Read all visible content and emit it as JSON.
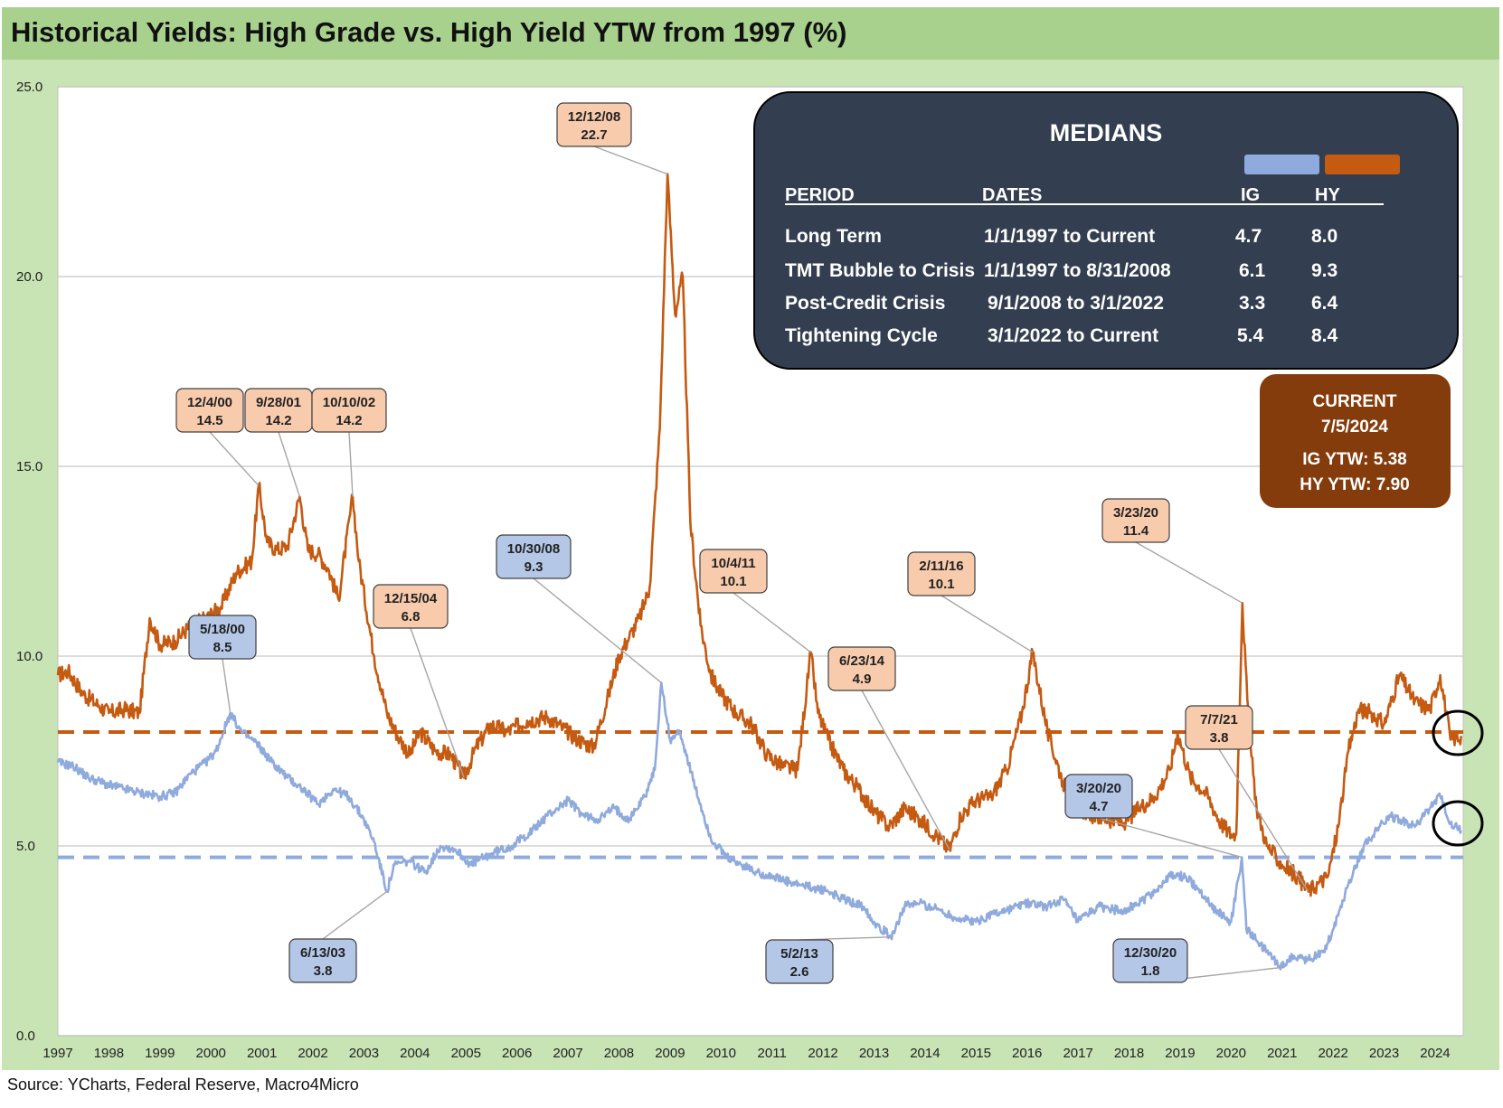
{
  "title": "Historical Yields: High Grade vs. High Yield YTW from 1997 (%)",
  "source": "Source: YCharts, Federal Reserve, Macro4Micro",
  "colors": {
    "ig": "#8faadc",
    "hy": "#c55a11",
    "ig_label_bg": "#b4c7e7",
    "hy_label_bg": "#f8cbad",
    "medians_box": "#333f50",
    "current_box": "#843c0c",
    "title_bar": "#a9d18e",
    "chart_bg": "#c8e3b4"
  },
  "medians": {
    "title": "MEDIANS",
    "headers": {
      "period": "PERIOD",
      "dates": "DATES",
      "ig": "IG",
      "hy": "HY"
    },
    "rows": [
      {
        "period": "Long Term",
        "dates": "1/1/1997 to Current",
        "ig": "4.7",
        "hy": "8.0"
      },
      {
        "period": "TMT Bubble to Crisis",
        "dates": "1/1/1997 to 8/31/2008",
        "ig": "6.1",
        "hy": "9.3"
      },
      {
        "period": "Post-Credit Crisis",
        "dates": "9/1/2008 to 3/1/2022",
        "ig": "3.3",
        "hy": "6.4"
      },
      {
        "period": "Tightening Cycle",
        "dates": "3/1/2022 to Current",
        "ig": "5.4",
        "hy": "8.4"
      }
    ]
  },
  "current": {
    "title": "CURRENT",
    "date": "7/5/2024",
    "ig": "IG YTW: 5.38",
    "hy": "HY YTW: 7.90"
  },
  "chart_data": {
    "type": "line",
    "title": "Historical Yields: High Grade vs. High Yield YTW from 1997 (%)",
    "ylim": [
      0,
      25
    ],
    "yticks": [
      "0.0",
      "5.0",
      "10.0",
      "15.0",
      "20.0",
      "25.0"
    ],
    "xlim": [
      1997.0,
      2024.55
    ],
    "xticks": [
      "1997",
      "1998",
      "1999",
      "2000",
      "2001",
      "2002",
      "2003",
      "2004",
      "2005",
      "2006",
      "2007",
      "2008",
      "2009",
      "2010",
      "2011",
      "2012",
      "2013",
      "2014",
      "2015",
      "2016",
      "2017",
      "2018",
      "2019",
      "2020",
      "2021",
      "2022",
      "2023",
      "2024"
    ],
    "grid": "horizontal",
    "median_lines": [
      {
        "series": "HY",
        "value": 8.0
      },
      {
        "series": "IG",
        "value": 4.7
      }
    ],
    "series": [
      {
        "key": "HY",
        "x": [
          1997.0,
          1997.2,
          1997.5,
          1997.8,
          1998.0,
          1998.3,
          1998.6,
          1998.8,
          1999.0,
          1999.3,
          1999.6,
          1999.9,
          2000.2,
          2000.5,
          2000.8,
          2000.94,
          2001.1,
          2001.3,
          2001.5,
          2001.74,
          2001.9,
          2002.1,
          2002.3,
          2002.5,
          2002.78,
          2002.9,
          2003.2,
          2003.45,
          2003.7,
          2003.9,
          2004.1,
          2004.4,
          2004.7,
          2004.96,
          2005.2,
          2005.5,
          2005.8,
          2006.2,
          2006.6,
          2006.9,
          2007.2,
          2007.5,
          2007.8,
          2008.0,
          2008.2,
          2008.4,
          2008.6,
          2008.8,
          2008.95,
          2009.1,
          2009.25,
          2009.4,
          2009.6,
          2009.8,
          2010.0,
          2010.3,
          2010.6,
          2010.9,
          2011.2,
          2011.5,
          2011.76,
          2011.9,
          2012.1,
          2012.4,
          2012.7,
          2013.0,
          2013.3,
          2013.6,
          2013.9,
          2014.2,
          2014.48,
          2014.7,
          2015.0,
          2015.3,
          2015.6,
          2015.9,
          2016.11,
          2016.4,
          2016.7,
          2017.0,
          2017.3,
          2017.6,
          2017.9,
          2018.2,
          2018.5,
          2018.8,
          2018.95,
          2019.2,
          2019.5,
          2019.8,
          2020.0,
          2020.1,
          2020.22,
          2020.35,
          2020.5,
          2020.7,
          2021.0,
          2021.3,
          2021.51,
          2021.7,
          2021.9,
          2022.1,
          2022.3,
          2022.5,
          2022.75,
          2023.0,
          2023.3,
          2023.6,
          2023.9,
          2024.1,
          2024.3,
          2024.51
        ],
        "values": [
          9.5,
          9.6,
          9.0,
          8.7,
          8.5,
          8.6,
          8.5,
          11.0,
          10.3,
          10.4,
          10.8,
          11.0,
          11.3,
          12.2,
          12.5,
          14.5,
          13.0,
          12.8,
          12.9,
          14.2,
          12.8,
          12.7,
          12.3,
          11.5,
          14.2,
          12.5,
          10.0,
          8.5,
          7.8,
          7.4,
          8.0,
          7.5,
          7.4,
          6.8,
          7.6,
          8.2,
          8.0,
          8.3,
          8.4,
          8.1,
          7.8,
          7.6,
          9.0,
          10.0,
          10.5,
          11.0,
          11.8,
          16.0,
          22.7,
          19.0,
          20.0,
          13.5,
          10.8,
          9.5,
          9.0,
          8.5,
          8.2,
          7.4,
          7.1,
          7.0,
          10.1,
          8.5,
          7.8,
          7.0,
          6.5,
          5.9,
          5.5,
          6.0,
          5.7,
          5.3,
          4.9,
          5.8,
          6.2,
          6.3,
          7.0,
          8.5,
          10.1,
          8.0,
          6.7,
          6.0,
          5.8,
          5.7,
          5.6,
          6.0,
          6.3,
          7.0,
          8.0,
          6.8,
          6.4,
          5.6,
          5.3,
          5.3,
          11.4,
          8.0,
          6.0,
          5.0,
          4.5,
          4.2,
          3.8,
          4.0,
          4.2,
          5.5,
          7.5,
          8.6,
          8.5,
          8.2,
          9.5,
          8.8,
          8.6,
          9.5,
          7.8,
          7.9
        ]
      },
      {
        "key": "IG",
        "x": [
          1997.0,
          1997.3,
          1997.6,
          1998.0,
          1998.3,
          1998.6,
          1999.0,
          1999.3,
          1999.6,
          1999.9,
          2000.1,
          2000.38,
          2000.6,
          2000.9,
          2001.2,
          2001.5,
          2001.8,
          2002.1,
          2002.4,
          2002.7,
          2003.0,
          2003.2,
          2003.45,
          2003.6,
          2003.9,
          2004.2,
          2004.5,
          2004.8,
          2005.1,
          2005.5,
          2005.9,
          2006.3,
          2006.6,
          2007.0,
          2007.3,
          2007.6,
          2007.9,
          2008.2,
          2008.5,
          2008.7,
          2008.83,
          2009.0,
          2009.2,
          2009.5,
          2009.8,
          2010.1,
          2010.4,
          2010.7,
          2011.0,
          2011.4,
          2011.8,
          2012.1,
          2012.4,
          2012.8,
          2013.0,
          2013.33,
          2013.6,
          2013.9,
          2014.3,
          2014.6,
          2015.0,
          2015.3,
          2015.6,
          2016.0,
          2016.4,
          2016.7,
          2017.0,
          2017.4,
          2017.8,
          2018.1,
          2018.5,
          2018.8,
          2019.1,
          2019.4,
          2019.7,
          2020.0,
          2020.21,
          2020.3,
          2020.5,
          2020.7,
          2021.0,
          2021.2,
          2021.5,
          2021.8,
          2022.0,
          2022.3,
          2022.6,
          2022.9,
          2023.1,
          2023.3,
          2023.6,
          2023.9,
          2024.1,
          2024.3,
          2024.51
        ],
        "values": [
          7.2,
          7.1,
          6.8,
          6.6,
          6.5,
          6.4,
          6.3,
          6.4,
          6.9,
          7.2,
          7.5,
          8.5,
          8.0,
          7.7,
          7.2,
          6.8,
          6.5,
          6.1,
          6.5,
          6.3,
          5.7,
          5.1,
          3.8,
          4.5,
          4.6,
          4.3,
          5.0,
          4.9,
          4.5,
          4.8,
          5.0,
          5.4,
          5.8,
          6.2,
          5.8,
          5.7,
          6.0,
          5.7,
          6.3,
          7.0,
          9.3,
          7.8,
          8.0,
          6.5,
          5.2,
          4.7,
          4.5,
          4.3,
          4.2,
          4.0,
          3.9,
          3.8,
          3.6,
          3.4,
          3.0,
          2.6,
          3.4,
          3.5,
          3.3,
          3.1,
          3.0,
          3.2,
          3.3,
          3.5,
          3.4,
          3.6,
          3.0,
          3.4,
          3.3,
          3.4,
          3.8,
          4.2,
          4.2,
          3.8,
          3.3,
          3.0,
          4.7,
          2.8,
          2.5,
          2.2,
          1.8,
          2.1,
          2.0,
          2.2,
          2.8,
          4.0,
          5.0,
          5.5,
          5.8,
          5.7,
          5.5,
          6.0,
          6.3,
          5.6,
          5.4
        ]
      }
    ],
    "annotations": [
      {
        "series": "HY",
        "date": "12/4/00",
        "value": "14.5",
        "x": 2000.93,
        "y": 14.5
      },
      {
        "series": "HY",
        "date": "9/28/01",
        "value": "14.2",
        "x": 2001.74,
        "y": 14.2
      },
      {
        "series": "HY",
        "date": "10/10/02",
        "value": "14.2",
        "x": 2002.78,
        "y": 14.2
      },
      {
        "series": "HY",
        "date": "12/15/04",
        "value": "6.8",
        "x": 2004.96,
        "y": 6.8
      },
      {
        "series": "HY",
        "date": "12/12/08",
        "value": "22.7",
        "x": 2008.95,
        "y": 22.7
      },
      {
        "series": "HY",
        "date": "10/4/11",
        "value": "10.1",
        "x": 2011.76,
        "y": 10.1
      },
      {
        "series": "HY",
        "date": "6/23/14",
        "value": "4.9",
        "x": 2014.48,
        "y": 4.9
      },
      {
        "series": "HY",
        "date": "2/11/16",
        "value": "10.1",
        "x": 2016.11,
        "y": 10.1
      },
      {
        "series": "HY",
        "date": "3/23/20",
        "value": "11.4",
        "x": 2020.22,
        "y": 11.4
      },
      {
        "series": "HY",
        "date": "7/7/21",
        "value": "3.8",
        "x": 2021.51,
        "y": 3.8
      },
      {
        "series": "IG",
        "date": "5/18/00",
        "value": "8.5",
        "x": 2000.38,
        "y": 8.5
      },
      {
        "series": "IG",
        "date": "6/13/03",
        "value": "3.8",
        "x": 2003.45,
        "y": 3.8
      },
      {
        "series": "IG",
        "date": "10/30/08",
        "value": "9.3",
        "x": 2008.83,
        "y": 9.3
      },
      {
        "series": "IG",
        "date": "5/2/13",
        "value": "2.6",
        "x": 2013.33,
        "y": 2.6
      },
      {
        "series": "IG",
        "date": "3/20/20",
        "value": "4.7",
        "x": 2020.21,
        "y": 4.7
      },
      {
        "series": "IG",
        "date": "12/30/20",
        "value": "1.8",
        "x": 2021.0,
        "y": 1.8
      }
    ]
  }
}
